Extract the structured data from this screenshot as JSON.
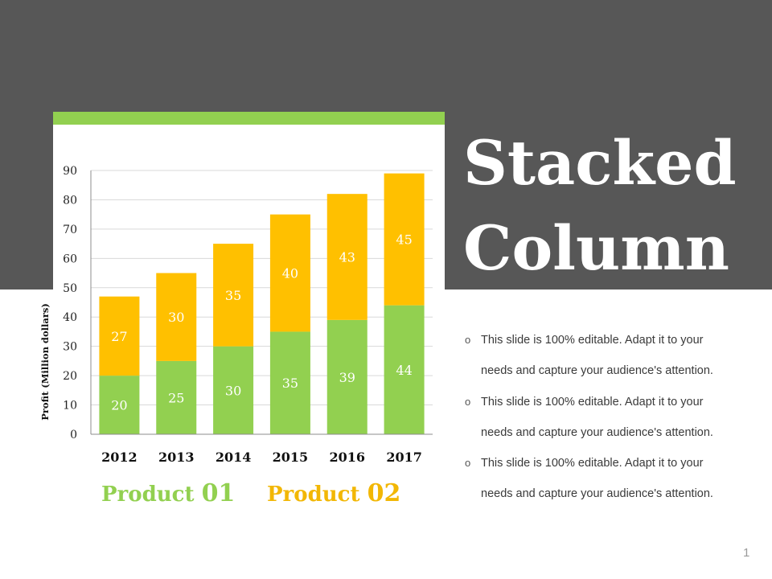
{
  "slide": {
    "title_line1": "Stacked",
    "title_line2": "Column",
    "page_number": "1"
  },
  "legend": [
    {
      "name": "Product",
      "number": "01",
      "color": "#92d050"
    },
    {
      "name": "Product",
      "number": "02",
      "color": "#f2b705"
    }
  ],
  "bullets": [
    {
      "line1": "This slide is 100% editable. Adapt it to your",
      "line2": "needs and capture your audience's attention."
    },
    {
      "line1": "This slide is 100% editable. Adapt it to your",
      "line2": "needs and capture your audience's attention."
    },
    {
      "line1": "This slide is 100% editable. Adapt it to your",
      "line2": "needs and capture your audience's attention."
    }
  ],
  "bullet_marker": "o",
  "colors": {
    "band": "#575757",
    "accent_green": "#92d050",
    "accent_yellow": "#ffc000"
  },
  "chart_data": {
    "type": "bar",
    "stacked": true,
    "categories": [
      "2012",
      "2013",
      "2014",
      "2015",
      "2016",
      "2017"
    ],
    "series": [
      {
        "name": "Product 01",
        "color": "#92d050",
        "values": [
          20,
          25,
          30,
          35,
          39,
          44
        ]
      },
      {
        "name": "Product 02",
        "color": "#ffc000",
        "values": [
          27,
          30,
          35,
          40,
          43,
          45
        ]
      }
    ],
    "ylabel": "Profit (Million dollars)",
    "xlabel": "",
    "ylim": [
      0,
      90
    ],
    "yticks": [
      0,
      10,
      20,
      30,
      40,
      50,
      60,
      70,
      80,
      90
    ],
    "grid": true,
    "data_labels": true
  }
}
